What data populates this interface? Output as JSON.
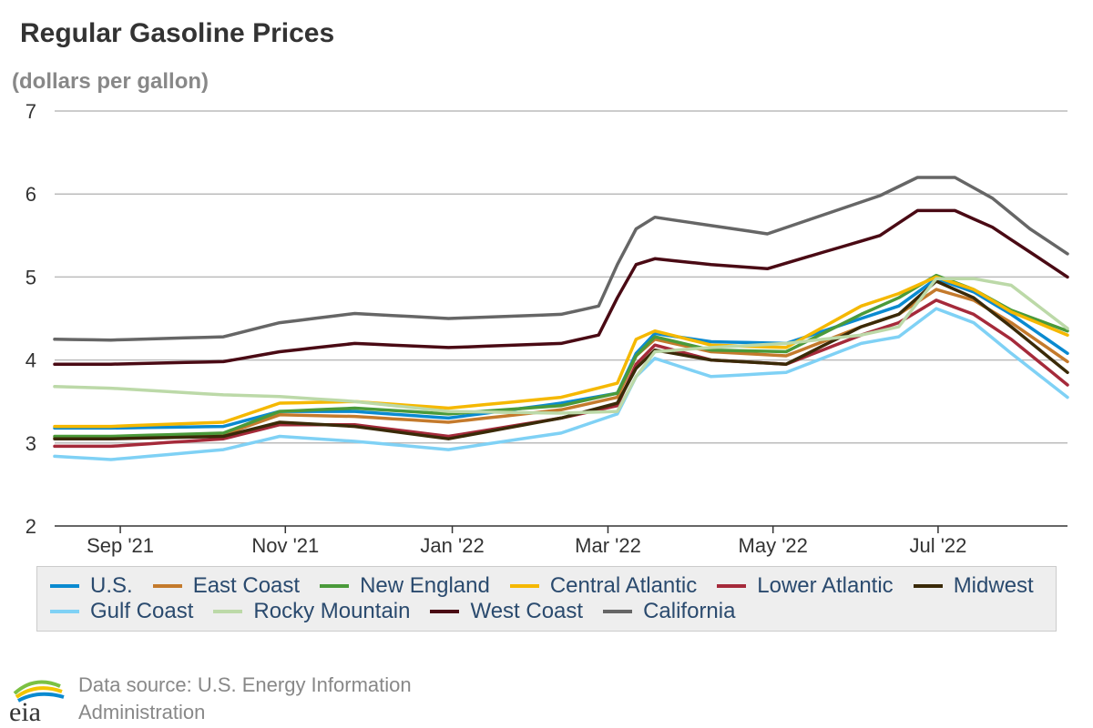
{
  "title": "Regular Gasoline Prices",
  "subtitle": "(dollars per gallon)",
  "source_text": "Data source: U.S. Energy Information Administration",
  "logo_text": "eia",
  "chart_data": {
    "type": "line",
    "title": "Regular Gasoline Prices",
    "ylabel": "(dollars per gallon)",
    "ylim": [
      2,
      7
    ],
    "yticks": [
      "2",
      "3",
      "4",
      "5",
      "6",
      "7"
    ],
    "xlim": [
      0,
      54
    ],
    "xticks": [
      {
        "label": "Sep '21",
        "week": 3.5
      },
      {
        "label": "Nov '21",
        "week": 12.3
      },
      {
        "label": "Jan '22",
        "week": 21.2
      },
      {
        "label": "Mar '22",
        "week": 29.5
      },
      {
        "label": "May '22",
        "week": 38.3
      },
      {
        "label": "Jul '22",
        "week": 47.1
      }
    ],
    "grid": true,
    "legend_position": "bottom",
    "series": [
      {
        "name": "U.S.",
        "color": "#0a8ad0",
        "anchors": [
          [
            0,
            3.18
          ],
          [
            3,
            3.18
          ],
          [
            9,
            3.2
          ],
          [
            12,
            3.38
          ],
          [
            16,
            3.38
          ],
          [
            21,
            3.3
          ],
          [
            27,
            3.48
          ],
          [
            30,
            3.6
          ],
          [
            31,
            4.08
          ],
          [
            32,
            4.32
          ],
          [
            35,
            4.22
          ],
          [
            39,
            4.2
          ],
          [
            43,
            4.5
          ],
          [
            45,
            4.65
          ],
          [
            47,
            4.98
          ],
          [
            49,
            4.82
          ],
          [
            51,
            4.55
          ],
          [
            54,
            4.08
          ]
        ]
      },
      {
        "name": "East Coast",
        "color": "#c47a2c",
        "anchors": [
          [
            0,
            3.06
          ],
          [
            3,
            3.06
          ],
          [
            9,
            3.1
          ],
          [
            12,
            3.34
          ],
          [
            16,
            3.32
          ],
          [
            21,
            3.25
          ],
          [
            27,
            3.4
          ],
          [
            30,
            3.55
          ],
          [
            31,
            4.05
          ],
          [
            32,
            4.25
          ],
          [
            35,
            4.1
          ],
          [
            39,
            4.05
          ],
          [
            43,
            4.4
          ],
          [
            45,
            4.55
          ],
          [
            47,
            4.85
          ],
          [
            49,
            4.72
          ],
          [
            51,
            4.45
          ],
          [
            54,
            3.98
          ]
        ]
      },
      {
        "name": "New England",
        "color": "#4a9a3a",
        "anchors": [
          [
            0,
            3.08
          ],
          [
            3,
            3.08
          ],
          [
            9,
            3.12
          ],
          [
            12,
            3.38
          ],
          [
            16,
            3.42
          ],
          [
            21,
            3.35
          ],
          [
            27,
            3.45
          ],
          [
            30,
            3.6
          ],
          [
            31,
            4.05
          ],
          [
            32,
            4.28
          ],
          [
            35,
            4.12
          ],
          [
            39,
            4.1
          ],
          [
            43,
            4.55
          ],
          [
            45,
            4.75
          ],
          [
            47,
            5.02
          ],
          [
            49,
            4.85
          ],
          [
            51,
            4.6
          ],
          [
            54,
            4.35
          ]
        ]
      },
      {
        "name": "Central Atlantic",
        "color": "#f5b800",
        "anchors": [
          [
            0,
            3.2
          ],
          [
            3,
            3.2
          ],
          [
            9,
            3.25
          ],
          [
            12,
            3.48
          ],
          [
            16,
            3.5
          ],
          [
            21,
            3.42
          ],
          [
            27,
            3.55
          ],
          [
            30,
            3.72
          ],
          [
            31,
            4.25
          ],
          [
            32,
            4.35
          ],
          [
            35,
            4.18
          ],
          [
            39,
            4.15
          ],
          [
            43,
            4.65
          ],
          [
            45,
            4.8
          ],
          [
            47,
            5.0
          ],
          [
            49,
            4.85
          ],
          [
            51,
            4.58
          ],
          [
            54,
            4.3
          ]
        ]
      },
      {
        "name": "Lower Atlantic",
        "color": "#a52a3a",
        "anchors": [
          [
            0,
            2.96
          ],
          [
            3,
            2.96
          ],
          [
            9,
            3.05
          ],
          [
            12,
            3.22
          ],
          [
            16,
            3.22
          ],
          [
            21,
            3.08
          ],
          [
            27,
            3.3
          ],
          [
            30,
            3.45
          ],
          [
            31,
            3.95
          ],
          [
            32,
            4.18
          ],
          [
            35,
            4.0
          ],
          [
            39,
            3.95
          ],
          [
            43,
            4.3
          ],
          [
            45,
            4.45
          ],
          [
            47,
            4.72
          ],
          [
            49,
            4.55
          ],
          [
            51,
            4.25
          ],
          [
            54,
            3.7
          ]
        ]
      },
      {
        "name": "Midwest",
        "color": "#3a2a08",
        "anchors": [
          [
            0,
            3.05
          ],
          [
            3,
            3.05
          ],
          [
            9,
            3.08
          ],
          [
            12,
            3.25
          ],
          [
            16,
            3.2
          ],
          [
            21,
            3.05
          ],
          [
            27,
            3.3
          ],
          [
            30,
            3.48
          ],
          [
            31,
            3.9
          ],
          [
            32,
            4.12
          ],
          [
            35,
            4.0
          ],
          [
            39,
            3.95
          ],
          [
            43,
            4.4
          ],
          [
            45,
            4.55
          ],
          [
            47,
            4.95
          ],
          [
            49,
            4.75
          ],
          [
            51,
            4.4
          ],
          [
            54,
            3.85
          ]
        ]
      },
      {
        "name": "Gulf Coast",
        "color": "#7fd1f5",
        "anchors": [
          [
            0,
            2.84
          ],
          [
            3,
            2.8
          ],
          [
            9,
            2.92
          ],
          [
            12,
            3.08
          ],
          [
            16,
            3.02
          ],
          [
            21,
            2.92
          ],
          [
            27,
            3.12
          ],
          [
            30,
            3.35
          ],
          [
            31,
            3.8
          ],
          [
            32,
            4.02
          ],
          [
            35,
            3.8
          ],
          [
            39,
            3.85
          ],
          [
            43,
            4.2
          ],
          [
            45,
            4.28
          ],
          [
            47,
            4.62
          ],
          [
            49,
            4.45
          ],
          [
            51,
            4.08
          ],
          [
            54,
            3.55
          ]
        ]
      },
      {
        "name": "Rocky Mountain",
        "color": "#bcd9a8",
        "anchors": [
          [
            0,
            3.68
          ],
          [
            3,
            3.66
          ],
          [
            9,
            3.58
          ],
          [
            12,
            3.56
          ],
          [
            16,
            3.5
          ],
          [
            21,
            3.38
          ],
          [
            27,
            3.36
          ],
          [
            30,
            3.38
          ],
          [
            31,
            3.8
          ],
          [
            32,
            4.1
          ],
          [
            35,
            4.15
          ],
          [
            39,
            4.2
          ],
          [
            43,
            4.3
          ],
          [
            45,
            4.4
          ],
          [
            47,
            4.98
          ],
          [
            49,
            4.98
          ],
          [
            51,
            4.9
          ],
          [
            54,
            4.38
          ]
        ]
      },
      {
        "name": "West Coast",
        "color": "#4a0a14",
        "anchors": [
          [
            0,
            3.95
          ],
          [
            3,
            3.95
          ],
          [
            9,
            3.98
          ],
          [
            12,
            4.1
          ],
          [
            16,
            4.2
          ],
          [
            21,
            4.15
          ],
          [
            27,
            4.2
          ],
          [
            29,
            4.3
          ],
          [
            30,
            4.75
          ],
          [
            31,
            5.15
          ],
          [
            32,
            5.22
          ],
          [
            35,
            5.15
          ],
          [
            38,
            5.1
          ],
          [
            41,
            5.3
          ],
          [
            44,
            5.5
          ],
          [
            46,
            5.8
          ],
          [
            48,
            5.8
          ],
          [
            50,
            5.6
          ],
          [
            52,
            5.3
          ],
          [
            54,
            5.0
          ]
        ]
      },
      {
        "name": "California",
        "color": "#666666",
        "anchors": [
          [
            0,
            4.25
          ],
          [
            3,
            4.24
          ],
          [
            9,
            4.28
          ],
          [
            12,
            4.45
          ],
          [
            16,
            4.56
          ],
          [
            21,
            4.5
          ],
          [
            27,
            4.55
          ],
          [
            29,
            4.65
          ],
          [
            30,
            5.15
          ],
          [
            31,
            5.58
          ],
          [
            32,
            5.72
          ],
          [
            35,
            5.62
          ],
          [
            38,
            5.52
          ],
          [
            41,
            5.75
          ],
          [
            44,
            5.98
          ],
          [
            46,
            6.2
          ],
          [
            48,
            6.2
          ],
          [
            50,
            5.95
          ],
          [
            52,
            5.58
          ],
          [
            54,
            5.28
          ]
        ]
      }
    ]
  }
}
